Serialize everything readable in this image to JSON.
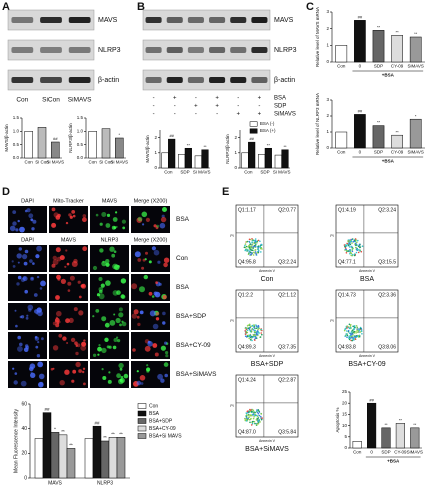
{
  "panel_labels": [
    "A",
    "B",
    "C",
    "D",
    "E"
  ],
  "panel_a": {
    "blot_labels": [
      "MAVS",
      "NLRP3",
      "β-actin"
    ],
    "lanes": [
      "Con",
      "SiCon",
      "SiMAVS"
    ],
    "charts": [
      {
        "type": "bar",
        "ylabel": "MAVS/β-actin",
        "categories": [
          "Con",
          "Si Con",
          "Si MAVS"
        ],
        "values": [
          1.0,
          1.15,
          0.6
        ],
        "colors": [
          "#ffffff",
          "#bbbbbb",
          "#888888"
        ],
        "marks": [
          null,
          null,
          "##"
        ],
        "ylim": [
          0,
          1.5
        ],
        "yticks": [
          {
            "value": 0,
            "label": "0.0"
          },
          0.5,
          {
            "value": 1,
            "label": "1.0"
          },
          1.5
        ]
      },
      {
        "type": "bar",
        "ylabel": "NLRP3/β-actin",
        "categories": [
          "Con",
          "Si Con",
          "Si MAVS"
        ],
        "values": [
          1.0,
          1.1,
          0.75
        ],
        "colors": [
          "#ffffff",
          "#bbbbbb",
          "#888888"
        ],
        "marks": [
          null,
          null,
          "*"
        ],
        "ylim": [
          0,
          1.5
        ],
        "yticks": [
          {
            "value": 0,
            "label": "0.0"
          },
          0.5,
          {
            "value": 1,
            "label": "1.0"
          },
          1.5
        ]
      }
    ]
  },
  "panel_b": {
    "blot_labels": [
      "MAVS",
      "NLRP3",
      "β-actin"
    ],
    "treatments": [
      {
        "name": "BSA",
        "signs": [
          "-",
          "+",
          "-",
          "+",
          "-",
          "+"
        ]
      },
      {
        "name": "SDP",
        "signs": [
          "-",
          "-",
          "+",
          "+",
          "-",
          "-"
        ]
      },
      {
        "name": "SiMAVS",
        "signs": [
          "-",
          "-",
          "-",
          "-",
          "+",
          "+"
        ]
      }
    ],
    "charts": [
      {
        "type": "bar",
        "ylabel": "MAVS/β-actin",
        "categories": [
          "Con",
          "SDP",
          "Si MAVS"
        ],
        "series": [
          {
            "name": "BSA (-)",
            "color": "#ffffff",
            "values": [
              1.0,
              0.9,
              0.8
            ]
          },
          {
            "name": "BSA (+)",
            "color": "#111111",
            "values": [
              1.9,
              1.3,
              1.2
            ],
            "marks": [
              "##",
              "**",
              "**"
            ]
          }
        ],
        "ylim": [
          0,
          2.5
        ],
        "yticks": [
          0,
          1,
          2
        ],
        "legend": true
      },
      {
        "type": "bar",
        "ylabel": "NLRP3/β-actin",
        "categories": [
          "Con",
          "SDP",
          "Si MAVS"
        ],
        "series": [
          {
            "name": "BSA (-)",
            "color": "#ffffff",
            "values": [
              1.0,
              0.9,
              0.85
            ]
          },
          {
            "name": "BSA (+)",
            "color": "#111111",
            "values": [
              1.7,
              1.3,
              1.2
            ],
            "marks": [
              "##",
              "**",
              "**"
            ]
          }
        ],
        "ylim": [
          0,
          2.5
        ],
        "yticks": [
          0,
          1,
          2
        ]
      }
    ]
  },
  "panel_c": {
    "charts": [
      {
        "type": "bar",
        "ylabel": "Relative level of MAVS mRNA",
        "categories": [
          "Con",
          "0",
          "SDP",
          "CY-09",
          "SiMAVS"
        ],
        "values": [
          1.0,
          2.5,
          1.9,
          1.6,
          1.5
        ],
        "colors": [
          "#ffffff",
          "#111111",
          "#666666",
          "#dddddd",
          "#999999"
        ],
        "marks": [
          null,
          "##",
          "**",
          "**",
          "**"
        ],
        "group_label": "+BSA",
        "ylim": [
          0,
          3
        ],
        "yticks": [
          0,
          1,
          2,
          3
        ]
      },
      {
        "type": "bar",
        "ylabel": "Relative level of NLRP3 mRNA",
        "categories": [
          "Con",
          "0",
          "SDP",
          "CY-09",
          "SiMAVS"
        ],
        "values": [
          1.0,
          2.1,
          1.4,
          0.8,
          1.8
        ],
        "colors": [
          "#ffffff",
          "#111111",
          "#666666",
          "#dddddd",
          "#999999"
        ],
        "marks": [
          null,
          "##",
          "**",
          "**",
          "*"
        ],
        "group_label": "+BSA",
        "ylim": [
          0,
          3
        ],
        "yticks": [
          0,
          1,
          2,
          3
        ]
      }
    ]
  },
  "panel_d": {
    "header_top": [
      "DAPI",
      "Mito-Tracker",
      "MAVS",
      "Merge (X200)"
    ],
    "header_bottom": [
      "DAPI",
      "MAVS",
      "NLRP3",
      "Merge (X200)"
    ],
    "row_labels": [
      "BSA",
      "Con",
      "BSA",
      "BSA+SDP",
      "BSA+CY-09",
      "BSA+SiMAVS"
    ],
    "chart": {
      "type": "bar",
      "ylabel": "Mean Fluorescence Intensity",
      "categories": [
        "MAVS",
        "NLRP3"
      ],
      "series": [
        {
          "name": "Con",
          "color": "#ffffff",
          "values": [
            32,
            32
          ]
        },
        {
          "name": "BSA",
          "color": "#111111",
          "values": [
            53,
            42
          ],
          "marks": [
            "##",
            "##"
          ]
        },
        {
          "name": "BSA+SDP",
          "color": "#666666",
          "values": [
            37,
            30
          ],
          "marks": [
            "*",
            "**"
          ]
        },
        {
          "name": "BSA+CY-09",
          "color": "#dddddd",
          "values": [
            35,
            33
          ],
          "marks": [
            "**",
            "**"
          ]
        },
        {
          "name": "BSA+Si MAVS",
          "color": "#999999",
          "values": [
            24,
            33
          ],
          "marks": [
            "**",
            "**"
          ]
        }
      ],
      "ylim": [
        0,
        60
      ],
      "yticks": [
        0,
        20,
        40,
        60
      ],
      "legend": true
    }
  },
  "panel_e": {
    "x_axis_label": "Annexin V",
    "y_axis_label": "PI",
    "plots": [
      {
        "caption": "Con",
        "quadrants": [
          "Q1:1.17",
          "Q2:0.77",
          "Q4:95.8",
          "Q3:2.24"
        ]
      },
      {
        "caption": "BSA",
        "quadrants": [
          "Q1:4.19",
          "Q2:3.24",
          "Q4:77.1",
          "Q3:15.5"
        ]
      },
      {
        "caption": "BSA+SDP",
        "quadrants": [
          "Q1:2.2",
          "Q2:1.12",
          "Q4:89.3",
          "Q3:7.35"
        ]
      },
      {
        "caption": "BSA+CY-09",
        "quadrants": [
          "Q1:4.73",
          "Q2:3.36",
          "Q4:83.8",
          "Q3:8.06"
        ]
      },
      {
        "caption": "BSA+SiMAVS",
        "quadrants": [
          "Q1:4.24",
          "Q2:2.87",
          "Q4:87.0",
          "Q3:5.84"
        ]
      }
    ],
    "chart": {
      "type": "bar",
      "ylabel": "Apoptosis %",
      "categories": [
        "Con",
        "0",
        "SDP",
        "CY-09",
        "SiMAVS"
      ],
      "values": [
        3,
        20,
        9,
        11,
        9
      ],
      "colors": [
        "#ffffff",
        "#111111",
        "#666666",
        "#dddddd",
        "#999999"
      ],
      "marks": [
        null,
        "##",
        "**",
        "**",
        "**"
      ],
      "group_label": "+BSA",
      "ylim": [
        0,
        25
      ],
      "yticks": [
        0,
        5,
        10,
        15,
        20,
        25
      ]
    }
  }
}
